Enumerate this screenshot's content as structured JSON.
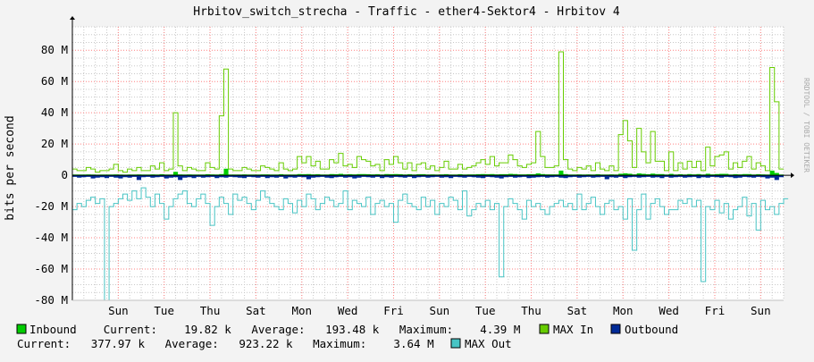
{
  "chart_data": {
    "type": "area",
    "title": "Hrbitov_switch_strecha - Traffic - ether4-Sektor4 - Hrbitov 4",
    "ylabel": "bits per second",
    "watermark": "RRDTOOL / TOBI OETIKER",
    "ylim": [
      -80,
      95
    ],
    "yticks": [
      {
        "v": 80,
        "label": "80 M"
      },
      {
        "v": 60,
        "label": "60 M"
      },
      {
        "v": 40,
        "label": "40 M"
      },
      {
        "v": 20,
        "label": "20 M"
      },
      {
        "v": 0,
        "label": "0"
      },
      {
        "v": -20,
        "label": "-20 M"
      },
      {
        "v": -40,
        "label": "-40 M"
      },
      {
        "v": -60,
        "label": "-60 M"
      },
      {
        "v": -80,
        "label": "-80 M"
      }
    ],
    "xticks": [
      "Sun",
      "Tue",
      "Thu",
      "Sat",
      "Mon",
      "Wed",
      "Fri",
      "Sun",
      "Tue",
      "Thu",
      "Sat",
      "Mon",
      "Wed",
      "Fri",
      "Sun"
    ],
    "x_days": 15.5,
    "grid": true,
    "colors": {
      "inbound": "#00cc00",
      "max_in": "#66cc00",
      "outbound": "#002a97",
      "max_out": "#48c4c4",
      "grid_major": "#ff8080",
      "grid_minor": "#c8c8c8"
    },
    "series": [
      {
        "name": "MAX In",
        "values": [
          4,
          3,
          3,
          5,
          4,
          2,
          3,
          3,
          4,
          7,
          3,
          2,
          4,
          3,
          5,
          3,
          3,
          6,
          4,
          8,
          3,
          4,
          40,
          6,
          3,
          5,
          4,
          3,
          3,
          8,
          5,
          4,
          38,
          68,
          4,
          3,
          3,
          5,
          4,
          3,
          3,
          6,
          5,
          4,
          3,
          8,
          4,
          3,
          4,
          12,
          8,
          12,
          6,
          9,
          4,
          4,
          10,
          8,
          14,
          6,
          7,
          5,
          12,
          10,
          9,
          6,
          7,
          3,
          10,
          7,
          12,
          8,
          4,
          8,
          3,
          7,
          8,
          4,
          6,
          3,
          5,
          9,
          4,
          4,
          7,
          4,
          5,
          6,
          8,
          10,
          7,
          12,
          6,
          8,
          8,
          13,
          10,
          6,
          5,
          7,
          8,
          28,
          12,
          5,
          5,
          6,
          79,
          10,
          4,
          3,
          5,
          4,
          6,
          3,
          8,
          4,
          3,
          6,
          3,
          26,
          35,
          22,
          5,
          30,
          15,
          8,
          28,
          9,
          9,
          3,
          15,
          3,
          8,
          4,
          9,
          5,
          9,
          3,
          18,
          6,
          12,
          13,
          15,
          4,
          8,
          5,
          9,
          12,
          4,
          8,
          6,
          3,
          69,
          47,
          4
        ]
      },
      {
        "name": "Inbound",
        "values": [
          0.5,
          0.5,
          0.5,
          0.6,
          0.5,
          0.4,
          0.5,
          0.5,
          0.5,
          0.6,
          0.5,
          0.4,
          0.5,
          0.5,
          0.6,
          0.5,
          0.5,
          0.6,
          0.5,
          0.7,
          0.5,
          0.5,
          2.2,
          0.6,
          0.5,
          0.6,
          0.5,
          0.5,
          0.5,
          0.7,
          0.6,
          0.5,
          0.8,
          4.2,
          0.5,
          0.5,
          0.5,
          0.6,
          0.5,
          0.5,
          0.5,
          0.6,
          0.6,
          0.5,
          0.5,
          0.7,
          0.5,
          0.5,
          0.5,
          0.8,
          0.7,
          0.8,
          0.6,
          0.7,
          0.5,
          0.5,
          0.8,
          0.7,
          0.9,
          0.6,
          0.7,
          0.6,
          0.8,
          0.8,
          0.7,
          0.6,
          0.7,
          0.5,
          0.8,
          0.7,
          0.8,
          0.7,
          0.5,
          0.7,
          0.5,
          0.7,
          0.7,
          0.5,
          0.6,
          0.5,
          0.6,
          0.7,
          0.5,
          0.5,
          0.7,
          0.5,
          0.6,
          0.6,
          0.7,
          0.8,
          0.7,
          0.8,
          0.6,
          0.7,
          0.7,
          0.9,
          0.8,
          0.6,
          0.6,
          0.7,
          0.7,
          1.2,
          0.8,
          0.6,
          0.6,
          0.6,
          3.0,
          0.8,
          0.5,
          0.5,
          0.6,
          0.5,
          0.6,
          0.5,
          0.7,
          0.5,
          0.5,
          0.6,
          0.5,
          1.0,
          1.3,
          1.0,
          0.6,
          1.2,
          0.9,
          0.7,
          1.1,
          0.8,
          0.8,
          0.5,
          0.9,
          0.5,
          0.7,
          0.5,
          0.8,
          0.6,
          0.8,
          0.5,
          1.0,
          0.6,
          0.8,
          0.9,
          0.9,
          0.5,
          0.7,
          0.6,
          0.8,
          0.8,
          0.5,
          0.7,
          0.6,
          0.5,
          3.0,
          1.5,
          0.5
        ]
      },
      {
        "name": "MAX Out",
        "values": [
          -22,
          -18,
          -20,
          -16,
          -14,
          -18,
          -15,
          -80,
          -20,
          -18,
          -15,
          -12,
          -16,
          -10,
          -15,
          -8,
          -14,
          -20,
          -12,
          -18,
          -28,
          -20,
          -15,
          -12,
          -10,
          -18,
          -20,
          -15,
          -12,
          -18,
          -32,
          -20,
          -14,
          -18,
          -25,
          -12,
          -16,
          -14,
          -18,
          -22,
          -16,
          -10,
          -14,
          -18,
          -20,
          -22,
          -15,
          -18,
          -24,
          -16,
          -20,
          -12,
          -15,
          -22,
          -18,
          -14,
          -16,
          -20,
          -18,
          -10,
          -22,
          -16,
          -18,
          -20,
          -14,
          -25,
          -18,
          -16,
          -20,
          -18,
          -30,
          -16,
          -12,
          -18,
          -20,
          -22,
          -14,
          -20,
          -16,
          -25,
          -18,
          -20,
          -14,
          -16,
          -22,
          -10,
          -26,
          -22,
          -18,
          -20,
          -16,
          -22,
          -18,
          -65,
          -20,
          -15,
          -18,
          -22,
          -28,
          -16,
          -20,
          -18,
          -22,
          -25,
          -20,
          -18,
          -16,
          -20,
          -18,
          -22,
          -12,
          -22,
          -18,
          -14,
          -20,
          -25,
          -18,
          -16,
          -22,
          -20,
          -28,
          -15,
          -48,
          -22,
          -12,
          -28,
          -18,
          -15,
          -20,
          -25,
          -22,
          -22,
          -16,
          -18,
          -15,
          -20,
          -16,
          -68,
          -20,
          -22,
          -16,
          -24,
          -18,
          -28,
          -22,
          -20,
          -14,
          -26,
          -18,
          -35,
          -16,
          -22,
          -20,
          -25,
          -18,
          -15
        ]
      },
      {
        "name": "Outbound",
        "values": [
          -1,
          -1.5,
          -1.2,
          -1,
          -2,
          -1.5,
          -1.2,
          -1.8,
          -1,
          -1.5,
          -2,
          -1.2,
          -1.5,
          -1,
          -3,
          -1.2,
          -1,
          -1.5,
          -1.2,
          -1,
          -2,
          -1.5,
          -1.2,
          -3,
          -1.5,
          -1.2,
          -1.8,
          -1,
          -1.5,
          -1.2,
          -1,
          -1.8,
          -1.2,
          -1.5,
          -1,
          -1.2,
          -1.5,
          -1.8,
          -1,
          -1.2,
          -1.5,
          -1,
          -1.8,
          -1.2,
          -1.5,
          -1,
          -2,
          -1.2,
          -1.5,
          -1,
          -1.2,
          -2.5,
          -1.5,
          -1.2,
          -1,
          -1.5,
          -1.8,
          -1.2,
          -1,
          -1.5,
          -1.2,
          -2,
          -1.5,
          -1,
          -1.2,
          -1.5,
          -1,
          -1.8,
          -1.2,
          -1.5,
          -1,
          -1.2,
          -1.5,
          -1,
          -1.8,
          -1.2,
          -1,
          -1.5,
          -1.2,
          -1,
          -1.5,
          -1.2,
          -1.8,
          -1,
          -1.2,
          -1.5,
          -1,
          -1.2,
          -1.5,
          -1.8,
          -1,
          -1.2,
          -1.5,
          -2,
          -1.2,
          -1,
          -1.5,
          -1.2,
          -1,
          -1.8,
          -1.5,
          -1.2,
          -1,
          -1.5,
          -1.2,
          -1,
          -1.5,
          -1.8,
          -1.2,
          -1,
          -1.5,
          -1.2,
          -1,
          -1.5,
          -1.2,
          -1,
          -2.5,
          -1.2,
          -1.5,
          -1,
          -1.8,
          -1.2,
          -1,
          -1.5,
          -1.2,
          -1,
          -1.5,
          -1.2,
          -1.8,
          -1,
          -1.5,
          -1.2,
          -1,
          -1.5,
          -1.2,
          -1,
          -1.8,
          -1.2,
          -1.5,
          -1,
          -1.2,
          -1.5,
          -1,
          -1.2,
          -1.8,
          -1.5,
          -1,
          -1.2,
          -1.5,
          -1,
          -1.2,
          -2,
          -1.5,
          -3,
          -1.2
        ]
      }
    ]
  },
  "legend": {
    "row1": [
      {
        "name": "Inbound",
        "color": "#00cc00",
        "text": "Inbound    Current:    19.82 k   Average:   193.48 k   Maximum:    4.39 M"
      },
      {
        "name": "MAX In",
        "color": "#66cc00",
        "text": "MAX In"
      },
      {
        "name": "Outbound",
        "color": "#002a97",
        "text": "Outbound"
      }
    ],
    "row2": [
      {
        "name": "",
        "color": "",
        "text": "Current:   377.97 k   Average:   923.22 k   Maximum:    3.64 M"
      },
      {
        "name": "MAX Out",
        "color": "#48c4c4",
        "text": "MAX Out"
      }
    ]
  }
}
